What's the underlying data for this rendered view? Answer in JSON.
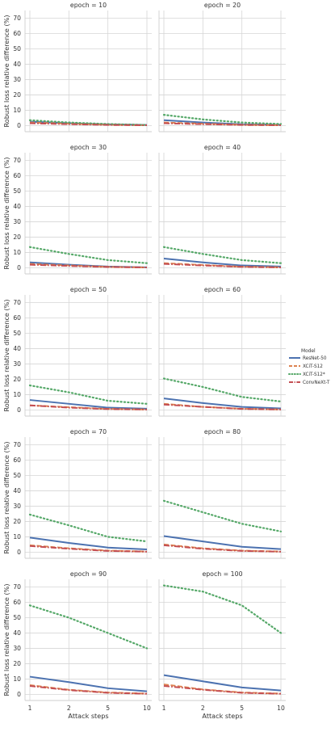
{
  "chart_data": {
    "type": "line",
    "xlabel": "Attack steps",
    "ylabel": "Robust loss relative difference (%)",
    "x": [
      "1",
      "2",
      "5",
      "10"
    ],
    "yticks": [
      0,
      10,
      20,
      30,
      40,
      50,
      60,
      70
    ],
    "ylim": [
      -4,
      75
    ],
    "grid": true,
    "legend": {
      "title": "Model",
      "placement": "right",
      "entries": [
        "ResNet-50",
        "XCiT-S12",
        "XCiT-S12*",
        "ConvNeXt-T"
      ]
    },
    "series_styles": [
      {
        "name": "ResNet-50",
        "color": "#4c72b0",
        "dash": "solid"
      },
      {
        "name": "XCiT-S12",
        "color": "#dd8452",
        "dash": "dashed"
      },
      {
        "name": "XCiT-S12*",
        "color": "#55a868",
        "dash": "dotted"
      },
      {
        "name": "ConvNeXt-T",
        "color": "#c44e52",
        "dash": "dashdot"
      }
    ],
    "panels": [
      {
        "title": "epoch = 10",
        "series": [
          {
            "name": "ResNet-50",
            "values": [
              2.5,
              1.5,
              0.8,
              0.4
            ]
          },
          {
            "name": "XCiT-S12",
            "values": [
              2.0,
              1.2,
              0.5,
              0.2
            ]
          },
          {
            "name": "XCiT-S12*",
            "values": [
              3.5,
              2.0,
              1.0,
              0.4
            ]
          },
          {
            "name": "ConvNeXt-T",
            "values": [
              1.5,
              0.9,
              0.4,
              0.2
            ]
          }
        ]
      },
      {
        "title": "epoch = 20",
        "series": [
          {
            "name": "ResNet-50",
            "values": [
              3.5,
              2.0,
              0.9,
              0.5
            ]
          },
          {
            "name": "XCiT-S12",
            "values": [
              2.0,
              1.2,
              0.5,
              0.2
            ]
          },
          {
            "name": "XCiT-S12*",
            "values": [
              7.0,
              4.0,
              2.0,
              1.0
            ]
          },
          {
            "name": "ConvNeXt-T",
            "values": [
              1.5,
              0.9,
              0.4,
              0.2
            ]
          }
        ]
      },
      {
        "title": "epoch = 30",
        "series": [
          {
            "name": "ResNet-50",
            "values": [
              3.5,
              2.0,
              0.8,
              0.3
            ]
          },
          {
            "name": "XCiT-S12",
            "values": [
              2.5,
              1.5,
              0.6,
              0.2
            ]
          },
          {
            "name": "XCiT-S12*",
            "values": [
              13.5,
              9.0,
              5.0,
              3.0
            ]
          },
          {
            "name": "ConvNeXt-T",
            "values": [
              2.0,
              1.2,
              0.5,
              0.2
            ]
          }
        ]
      },
      {
        "title": "epoch = 40",
        "series": [
          {
            "name": "ResNet-50",
            "values": [
              6.0,
              3.5,
              1.5,
              0.8
            ]
          },
          {
            "name": "XCiT-S12",
            "values": [
              3.0,
              1.8,
              0.7,
              0.3
            ]
          },
          {
            "name": "XCiT-S12*",
            "values": [
              13.5,
              9.0,
              5.0,
              3.0
            ]
          },
          {
            "name": "ConvNeXt-T",
            "values": [
              2.5,
              1.5,
              0.6,
              0.2
            ]
          }
        ]
      },
      {
        "title": "epoch = 50",
        "series": [
          {
            "name": "ResNet-50",
            "values": [
              6.5,
              4.0,
              1.5,
              0.8
            ]
          },
          {
            "name": "XCiT-S12",
            "values": [
              3.0,
              1.8,
              0.7,
              0.3
            ]
          },
          {
            "name": "XCiT-S12*",
            "values": [
              16.0,
              11.5,
              6.0,
              4.0
            ]
          },
          {
            "name": "ConvNeXt-T",
            "values": [
              3.0,
              1.5,
              0.6,
              0.3
            ]
          }
        ]
      },
      {
        "title": "epoch = 60",
        "series": [
          {
            "name": "ResNet-50",
            "values": [
              7.5,
              4.5,
              2.0,
              1.0
            ]
          },
          {
            "name": "XCiT-S12",
            "values": [
              4.0,
              2.0,
              0.8,
              0.3
            ]
          },
          {
            "name": "XCiT-S12*",
            "values": [
              20.5,
              15.0,
              8.5,
              5.5
            ]
          },
          {
            "name": "ConvNeXt-T",
            "values": [
              3.5,
              2.0,
              0.7,
              0.3
            ]
          }
        ]
      },
      {
        "title": "epoch = 70",
        "series": [
          {
            "name": "ResNet-50",
            "values": [
              9.5,
              6.0,
              3.0,
              1.8
            ]
          },
          {
            "name": "XCiT-S12",
            "values": [
              4.5,
              2.5,
              1.0,
              0.4
            ]
          },
          {
            "name": "XCiT-S12*",
            "values": [
              24.5,
              17.5,
              10.0,
              7.0
            ]
          },
          {
            "name": "ConvNeXt-T",
            "values": [
              4.0,
              2.2,
              0.8,
              0.3
            ]
          }
        ]
      },
      {
        "title": "epoch = 80",
        "series": [
          {
            "name": "ResNet-50",
            "values": [
              10.5,
              7.0,
              3.5,
              2.0
            ]
          },
          {
            "name": "XCiT-S12",
            "values": [
              5.0,
              2.5,
              1.0,
              0.4
            ]
          },
          {
            "name": "XCiT-S12*",
            "values": [
              33.5,
              26.0,
              18.5,
              13.5
            ]
          },
          {
            "name": "ConvNeXt-T",
            "values": [
              4.5,
              2.2,
              0.8,
              0.3
            ]
          }
        ]
      },
      {
        "title": "epoch = 90",
        "series": [
          {
            "name": "ResNet-50",
            "values": [
              11.5,
              8.0,
              4.0,
              2.0
            ]
          },
          {
            "name": "XCiT-S12",
            "values": [
              6.0,
              3.0,
              1.2,
              0.5
            ]
          },
          {
            "name": "XCiT-S12*",
            "values": [
              58.0,
              50.0,
              40.0,
              30.0
            ]
          },
          {
            "name": "ConvNeXt-T",
            "values": [
              5.5,
              2.8,
              1.0,
              0.4
            ]
          }
        ]
      },
      {
        "title": "epoch = 100",
        "series": [
          {
            "name": "ResNet-50",
            "values": [
              12.5,
              8.5,
              4.5,
              2.5
            ]
          },
          {
            "name": "XCiT-S12",
            "values": [
              6.5,
              3.2,
              1.2,
              0.5
            ]
          },
          {
            "name": "XCiT-S12*",
            "values": [
              71.0,
              67.0,
              58.0,
              40.0
            ]
          },
          {
            "name": "ConvNeXt-T",
            "values": [
              5.5,
              3.0,
              1.0,
              0.4
            ]
          }
        ]
      }
    ]
  }
}
